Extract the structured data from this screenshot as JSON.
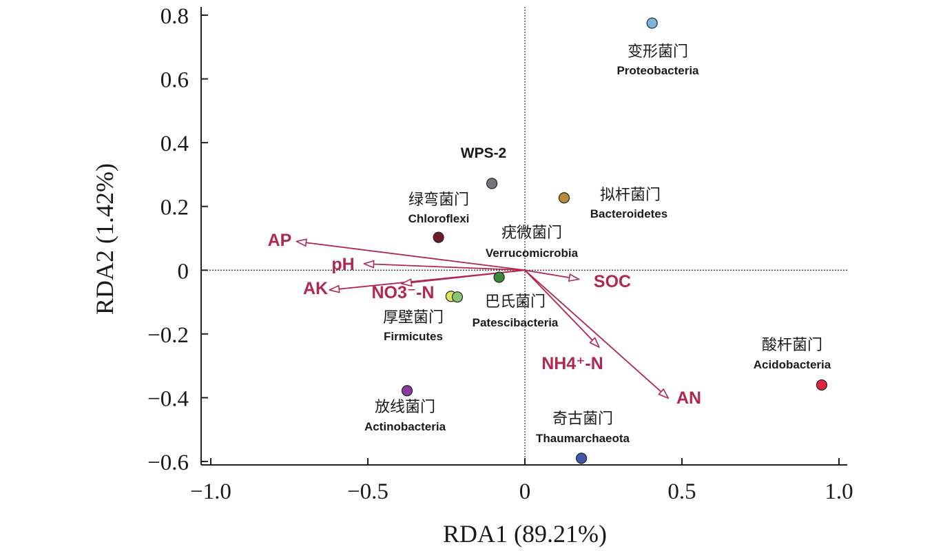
{
  "chart_data": {
    "type": "scatter",
    "subtype": "rda-biplot",
    "xlabel": "RDA1 (89.21%)",
    "ylabel": "RDA2 (1.42%)",
    "xlim": [
      -1.0,
      1.0
    ],
    "ylim": [
      -0.6,
      0.8
    ],
    "xticks": [
      {
        "value": -1.0,
        "label": "−1.0"
      },
      {
        "value": -0.5,
        "label": "−0.5"
      },
      {
        "value": 0,
        "label": "0"
      },
      {
        "value": 0.5,
        "label": "0.5"
      },
      {
        "value": 1.0,
        "label": "1.0"
      }
    ],
    "yticks": [
      {
        "value": 0.8,
        "label": "0.8"
      },
      {
        "value": 0.6,
        "label": "0.6"
      },
      {
        "value": 0.4,
        "label": "0.4"
      },
      {
        "value": 0.2,
        "label": "0.2"
      },
      {
        "value": 0,
        "label": "0"
      },
      {
        "value": -0.2,
        "label": "−0.2"
      },
      {
        "value": -0.4,
        "label": "−0.4"
      },
      {
        "value": -0.6,
        "label": "−0.6"
      }
    ],
    "reference_lines": {
      "x0": "dotted",
      "y0": "dotted"
    },
    "arrow_color": "#b0284e",
    "species": [
      {
        "name": "Proteobacteria",
        "cn": "变形菌门",
        "x": 0.405,
        "y": 0.775,
        "color": "#7fb2dd"
      },
      {
        "name": "WPS-2",
        "cn": "",
        "x": -0.105,
        "y": 0.272,
        "color": "#77757a"
      },
      {
        "name": "Bacteroidetes",
        "cn": "拟杆菌门",
        "x": 0.125,
        "y": 0.227,
        "color": "#b8893a"
      },
      {
        "name": "Chloroflexi",
        "cn": "绿弯菌门",
        "x": -0.275,
        "y": 0.103,
        "color": "#6e1a28"
      },
      {
        "name": "Verrucomicrobia",
        "cn": "疣微菌门",
        "x": -0.082,
        "y": -0.022,
        "color": "#3f8a3a"
      },
      {
        "name": "Firmicutes",
        "cn": "厚壁菌门",
        "x": -0.235,
        "y": -0.082,
        "color": "#e3e35a"
      },
      {
        "name": "Patescibacteria",
        "cn": "巴氏菌门",
        "x": -0.215,
        "y": -0.084,
        "color": "#8bc470"
      },
      {
        "name": "Actinobacteria",
        "cn": "放线菌门",
        "x": -0.375,
        "y": -0.378,
        "color": "#8a3a9a"
      },
      {
        "name": "Thaumarchaeota",
        "cn": "奇古菌门",
        "x": 0.18,
        "y": -0.59,
        "color": "#4458a8"
      },
      {
        "name": "Acidobacteria",
        "cn": "酸杆菌门",
        "x": 0.945,
        "y": -0.36,
        "color": "#e0283a"
      }
    ],
    "env_vectors": [
      {
        "name": "AP",
        "x": -0.725,
        "y": 0.09
      },
      {
        "name": "pH",
        "x": -0.51,
        "y": 0.02
      },
      {
        "name": "AK",
        "x": -0.62,
        "y": -0.062
      },
      {
        "name": "NO3⁻-N",
        "x": -0.39,
        "y": -0.042
      },
      {
        "name": "SOC",
        "x": 0.17,
        "y": -0.028
      },
      {
        "name": "NH4⁺-N",
        "x": 0.235,
        "y": -0.24
      },
      {
        "name": "AN",
        "x": 0.455,
        "y": -0.4
      }
    ]
  }
}
